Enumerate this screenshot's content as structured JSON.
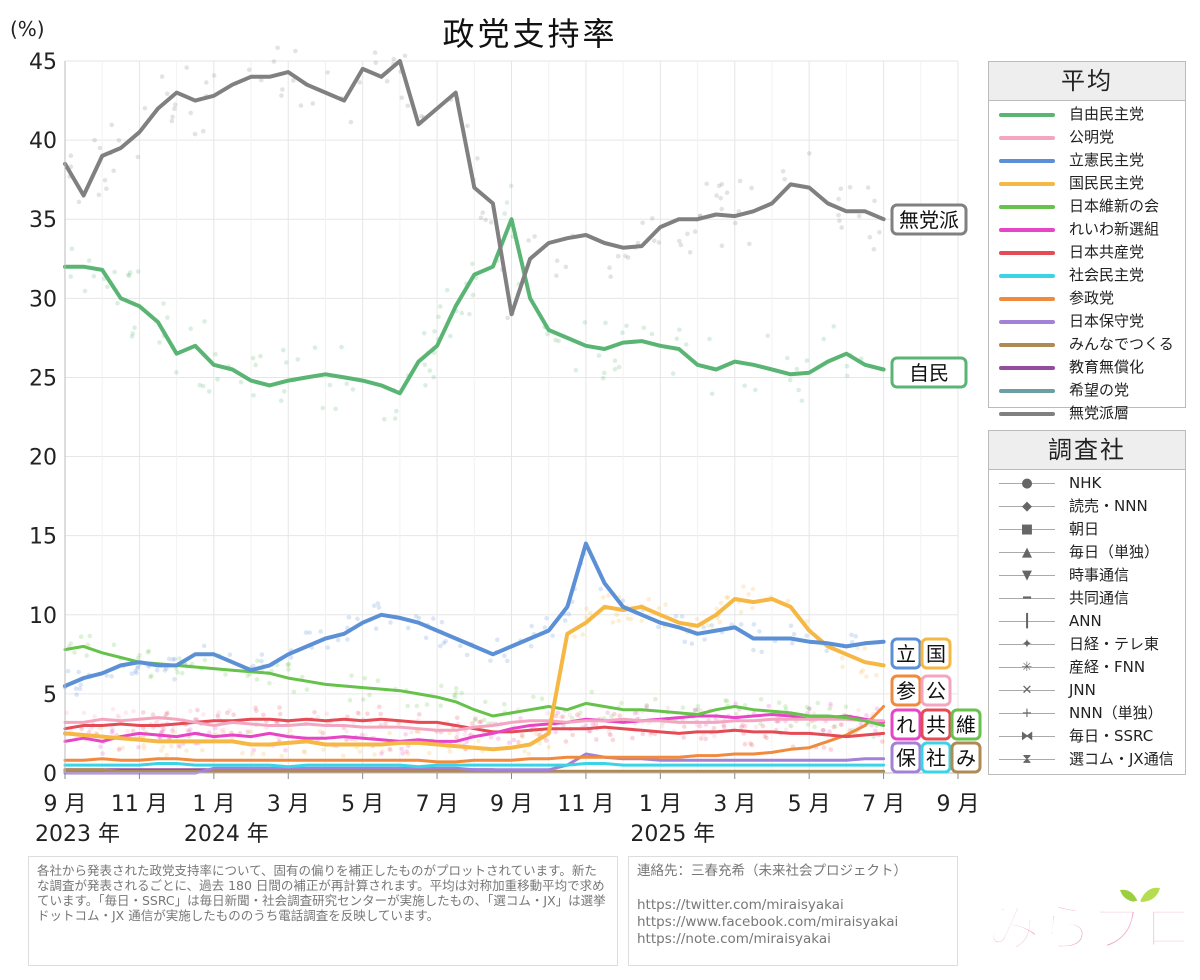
{
  "chart_data": {
    "type": "line",
    "title": "政党支持率",
    "ylabel": "(%)",
    "ylim": [
      0,
      45
    ],
    "yticks": [
      0,
      5,
      10,
      15,
      20,
      25,
      30,
      35,
      40,
      45
    ],
    "x_ticks": [
      {
        "m": 0,
        "label": "9 月"
      },
      {
        "m": 2,
        "label": "11 月"
      },
      {
        "m": 4,
        "label": "1 月"
      },
      {
        "m": 6,
        "label": "3 月"
      },
      {
        "m": 8,
        "label": "5 月"
      },
      {
        "m": 10,
        "label": "7 月"
      },
      {
        "m": 12,
        "label": "9 月"
      },
      {
        "m": 14,
        "label": "11 月"
      },
      {
        "m": 16,
        "label": "1 月"
      },
      {
        "m": 18,
        "label": "3 月"
      },
      {
        "m": 20,
        "label": "5 月"
      },
      {
        "m": 22,
        "label": "7 月"
      },
      {
        "m": 24,
        "label": "9 月"
      }
    ],
    "years": [
      {
        "m": 0,
        "label": "2023 年"
      },
      {
        "m": 4,
        "label": "2024 年"
      },
      {
        "m": 16,
        "label": "2025 年"
      }
    ],
    "xlim": [
      0,
      24
    ],
    "x_months": [
      0,
      0.5,
      1,
      1.5,
      2,
      2.5,
      3,
      3.5,
      4,
      4.5,
      5,
      5.5,
      6,
      6.5,
      7,
      7.5,
      8,
      8.5,
      9,
      9.5,
      10,
      10.5,
      11,
      11.5,
      12,
      12.5,
      13,
      13.5,
      14,
      14.5,
      15,
      15.5,
      16,
      16.5,
      17,
      17.5,
      18,
      18.5,
      19,
      19.5,
      20,
      20.5,
      21,
      21.5,
      22
    ],
    "grid": true,
    "legend_title": "平均",
    "series": [
      {
        "name": "自由民主党",
        "color": "#5ab574",
        "values": [
          32,
          32,
          31.8,
          30,
          29.5,
          28.5,
          26.5,
          27,
          25.8,
          25.5,
          24.8,
          24.5,
          24.8,
          25,
          25.2,
          25,
          24.8,
          24.5,
          24,
          26,
          27,
          29.5,
          31.5,
          32,
          35,
          30,
          28,
          27.5,
          27,
          26.8,
          27.2,
          27.3,
          27,
          26.8,
          25.8,
          25.5,
          26,
          25.8,
          25.5,
          25.2,
          25.3,
          26,
          26.5,
          25.8,
          25.5
        ]
      },
      {
        "name": "公明党",
        "color": "#f4a6c0",
        "values": [
          3.2,
          3.2,
          3.4,
          3.3,
          3.4,
          3.5,
          3.4,
          3.2,
          3.0,
          3.2,
          3.1,
          3.0,
          3.0,
          3.1,
          3.0,
          3.0,
          2.9,
          2.9,
          2.9,
          2.8,
          2.7,
          2.7,
          2.9,
          3.0,
          3.2,
          3.3,
          3.3,
          3.2,
          3.3,
          3.3,
          3.4,
          3.3,
          3.3,
          3.2,
          3.2,
          3.2,
          3.3,
          3.3,
          3.4,
          3.4,
          3.4,
          3.4,
          3.4,
          3.3,
          3.3
        ]
      },
      {
        "name": "立憲民主党",
        "color": "#5b8fd6",
        "values": [
          5.5,
          6,
          6.3,
          6.8,
          7,
          6.8,
          6.8,
          7.5,
          7.5,
          7,
          6.5,
          6.8,
          7.5,
          8,
          8.5,
          8.8,
          9.5,
          10,
          9.8,
          9.5,
          9,
          8.5,
          8,
          7.5,
          8,
          8.5,
          9,
          10.5,
          14.5,
          12,
          10.5,
          10,
          9.5,
          9.2,
          8.8,
          9,
          9.2,
          8.5,
          8.5,
          8.5,
          8.3,
          8.2,
          8,
          8.2,
          8.3
        ]
      },
      {
        "name": "国民民主党",
        "color": "#f6b844",
        "values": [
          2.5,
          2.4,
          2.3,
          2.2,
          2.1,
          2.0,
          2.0,
          2.0,
          2.0,
          2.0,
          1.8,
          1.8,
          1.9,
          2.0,
          1.8,
          1.8,
          1.8,
          1.8,
          1.9,
          1.9,
          1.8,
          1.7,
          1.6,
          1.5,
          1.6,
          1.8,
          2.5,
          8.8,
          9.5,
          10.5,
          10.3,
          10.5,
          10,
          9.5,
          9.3,
          10,
          11,
          10.8,
          11,
          10.5,
          9,
          8,
          7.5,
          7,
          6.8
        ]
      },
      {
        "name": "日本維新の会",
        "color": "#66c24a",
        "values": [
          7.8,
          8,
          7.6,
          7.3,
          7,
          6.9,
          6.8,
          6.7,
          6.6,
          6.5,
          6.4,
          6.3,
          6.0,
          5.8,
          5.6,
          5.5,
          5.4,
          5.3,
          5.2,
          5.0,
          4.8,
          4.5,
          4.0,
          3.6,
          3.8,
          4.0,
          4.2,
          4.0,
          4.4,
          4.2,
          4.0,
          4.0,
          3.9,
          3.8,
          3.7,
          4.0,
          4.2,
          4.0,
          3.9,
          3.8,
          3.6,
          3.6,
          3.5,
          3.3,
          3.0
        ]
      },
      {
        "name": "れいわ新選組",
        "color": "#e645c6",
        "values": [
          2.0,
          2.2,
          2.0,
          2.3,
          2.5,
          2.4,
          2.3,
          2.5,
          2.3,
          2.4,
          2.3,
          2.5,
          2.3,
          2.2,
          2.2,
          2.3,
          2.2,
          2.1,
          2.0,
          2.1,
          2.0,
          2.0,
          2.3,
          2.5,
          2.8,
          3.0,
          3.1,
          3.2,
          3.4,
          3.3,
          3.2,
          3.3,
          3.4,
          3.5,
          3.6,
          3.6,
          3.5,
          3.6,
          3.7,
          3.6,
          3.4,
          3.5,
          3.6,
          3.4,
          3.2
        ]
      },
      {
        "name": "日本共産党",
        "color": "#e54b55",
        "values": [
          2.8,
          3.0,
          3.0,
          3.1,
          3.0,
          3.0,
          3.1,
          3.2,
          3.3,
          3.3,
          3.4,
          3.4,
          3.3,
          3.4,
          3.3,
          3.4,
          3.3,
          3.4,
          3.3,
          3.2,
          3.2,
          3.0,
          2.8,
          2.6,
          2.6,
          2.7,
          2.8,
          2.8,
          2.8,
          2.9,
          2.8,
          2.7,
          2.6,
          2.5,
          2.6,
          2.6,
          2.7,
          2.6,
          2.6,
          2.5,
          2.5,
          2.4,
          2.3,
          2.4,
          2.5
        ]
      },
      {
        "name": "社会民主党",
        "color": "#3bd3e6",
        "values": [
          0.5,
          0.5,
          0.5,
          0.5,
          0.5,
          0.6,
          0.6,
          0.5,
          0.5,
          0.5,
          0.5,
          0.5,
          0.4,
          0.5,
          0.5,
          0.5,
          0.5,
          0.5,
          0.5,
          0.4,
          0.5,
          0.5,
          0.5,
          0.5,
          0.5,
          0.5,
          0.5,
          0.5,
          0.6,
          0.6,
          0.5,
          0.5,
          0.5,
          0.5,
          0.5,
          0.5,
          0.5,
          0.5,
          0.5,
          0.5,
          0.5,
          0.5,
          0.5,
          0.5,
          0.5
        ]
      },
      {
        "name": "参政党",
        "color": "#f08a3c",
        "values": [
          0.8,
          0.8,
          0.9,
          0.8,
          0.8,
          0.9,
          0.9,
          0.8,
          0.8,
          0.8,
          0.8,
          0.8,
          0.8,
          0.8,
          0.8,
          0.8,
          0.8,
          0.8,
          0.8,
          0.8,
          0.7,
          0.7,
          0.8,
          0.8,
          0.8,
          0.9,
          0.9,
          1.0,
          1.0,
          1.0,
          1.0,
          1.0,
          1.0,
          1.0,
          1.1,
          1.1,
          1.2,
          1.2,
          1.3,
          1.5,
          1.6,
          2.0,
          2.4,
          3.0,
          4.2
        ]
      },
      {
        "name": "日本保守党",
        "color": "#a381d6",
        "values": [
          0,
          0,
          0,
          0,
          0,
          0,
          0,
          0,
          0.3,
          0.3,
          0.3,
          0.3,
          0.3,
          0.3,
          0.3,
          0.3,
          0.3,
          0.3,
          0.3,
          0.3,
          0.3,
          0.3,
          0.2,
          0.2,
          0.2,
          0.2,
          0.2,
          0.5,
          1.2,
          1.0,
          0.9,
          0.9,
          0.8,
          0.8,
          0.8,
          0.8,
          0.8,
          0.8,
          0.8,
          0.8,
          0.8,
          0.8,
          0.8,
          0.9,
          0.9
        ]
      },
      {
        "name": "みんなでつくる",
        "color": "#b08a55",
        "values": [
          0.2,
          0.2,
          0.2,
          0.1,
          0.1,
          0.1,
          0.1,
          0.1,
          0.1,
          0.1,
          0.1,
          0.1,
          0.1,
          0.1,
          0.1,
          0.1,
          0.1,
          0.1,
          0.1,
          0.1,
          0.1,
          0.1,
          0.1,
          0.1,
          0.1,
          0.1,
          0.1,
          0.1,
          0.1,
          0.1,
          0.1,
          0.1,
          0.1,
          0.1,
          0.1,
          0.1,
          0.1,
          0.1,
          0.1,
          0.1,
          0.1,
          0.1,
          0.1,
          0.1,
          0.1
        ]
      },
      {
        "name": "教育無償化",
        "color": "#944d9e",
        "values": [
          0.2,
          0.2,
          0.2,
          0.2,
          0.2,
          0.2,
          0.2,
          0.2,
          0.2,
          0.2,
          0.2,
          0.2,
          0.2,
          0.2,
          0.2,
          0.2,
          0.2,
          0.2,
          0.2,
          0.2,
          0.2,
          0.2,
          0.2,
          0.2,
          0.1,
          null,
          null,
          null,
          null,
          null,
          null,
          null,
          null,
          null,
          null,
          null,
          null,
          null,
          null,
          null,
          null,
          null,
          null,
          null,
          null
        ]
      },
      {
        "name": "希望の党",
        "color": "#6b9fa3",
        "values": [
          0.1,
          0.1,
          0.1,
          0.1,
          0.1,
          0.1,
          0.1,
          0.1,
          0.1,
          0.1,
          0.1,
          0.1,
          0.1,
          0.1,
          0.1,
          0.1,
          0.1,
          0.1,
          0.1,
          0.1,
          0.1,
          0.1,
          0.1,
          0.1,
          0.1,
          0.1,
          0.1,
          0.1,
          0.1,
          0.1,
          0.1,
          0.1,
          0.1,
          0.1,
          0.1,
          0.1,
          0.1,
          0.1,
          0.1,
          0.1,
          0.1,
          0.1,
          0.1,
          0.1,
          0.1
        ]
      },
      {
        "name": "無党派層",
        "color": "#808080",
        "values": [
          38.5,
          36.5,
          39,
          39.5,
          40.5,
          42,
          43,
          42.5,
          42.8,
          43.5,
          44,
          44,
          44.3,
          43.5,
          43,
          42.5,
          44.5,
          44,
          45,
          41,
          42,
          43,
          37,
          36,
          29,
          32.5,
          33.5,
          33.8,
          34,
          33.5,
          33.2,
          33.3,
          34.5,
          35,
          35,
          35.3,
          35.2,
          35.5,
          36,
          37.2,
          37,
          36,
          35.5,
          35.5,
          35
        ]
      }
    ],
    "end_labels": [
      {
        "text": "無党派",
        "color": "#808080"
      },
      {
        "text": "自民",
        "color": "#5ab574"
      },
      {
        "text": "立",
        "color": "#5b8fd6"
      },
      {
        "text": "国",
        "color": "#f6b844"
      },
      {
        "text": "参",
        "color": "#f08a3c"
      },
      {
        "text": "公",
        "color": "#f4a6c0"
      },
      {
        "text": "れ",
        "color": "#e645c6"
      },
      {
        "text": "共",
        "color": "#e54b55"
      },
      {
        "text": "維",
        "color": "#66c24a"
      },
      {
        "text": "保",
        "color": "#a381d6"
      },
      {
        "text": "社",
        "color": "#3bd3e6"
      },
      {
        "text": "み",
        "color": "#b08a55"
      }
    ],
    "firms_title": "調査社",
    "firms": [
      {
        "name": "NHK",
        "marker": "●"
      },
      {
        "name": "読売・NNN",
        "marker": "◆"
      },
      {
        "name": "朝日",
        "marker": "■"
      },
      {
        "name": "毎日（単独）",
        "marker": "▲"
      },
      {
        "name": "時事通信",
        "marker": "▼"
      },
      {
        "name": "共同通信",
        "marker": "━"
      },
      {
        "name": "ANN",
        "marker": "┃"
      },
      {
        "name": "日経・テレ東",
        "marker": "✦"
      },
      {
        "name": "産経・FNN",
        "marker": "✳"
      },
      {
        "name": "JNN",
        "marker": "✕"
      },
      {
        "name": "NNN（単独）",
        "marker": "+"
      },
      {
        "name": "毎日・SSRC",
        "marker": "⧓"
      },
      {
        "name": "選コム・JX通信",
        "marker": "⧗"
      }
    ]
  },
  "notes": {
    "method": "各社から発表された政党支持率について、固有の偏りを補正したものがプロットされています。新たな調査が発表されるごとに、過去 180 日間の補正が再計算されます。平均は対称加重移動平均で求めています。「毎日・SSRC」は毎日新聞・社会調査研究センターが実施したもの、「選コム・JX」は選挙ドットコム・JX 通信が実施したもののうち電話調査を反映しています。",
    "contact": "連絡先：三春充希（未来社会プロジェクト）",
    "links": [
      "https://twitter.com/miraisyakai",
      "https://www.facebook.com/miraisyakai",
      "https://note.com/miraisyakai"
    ]
  },
  "logo": {
    "text": "みらプロ"
  }
}
